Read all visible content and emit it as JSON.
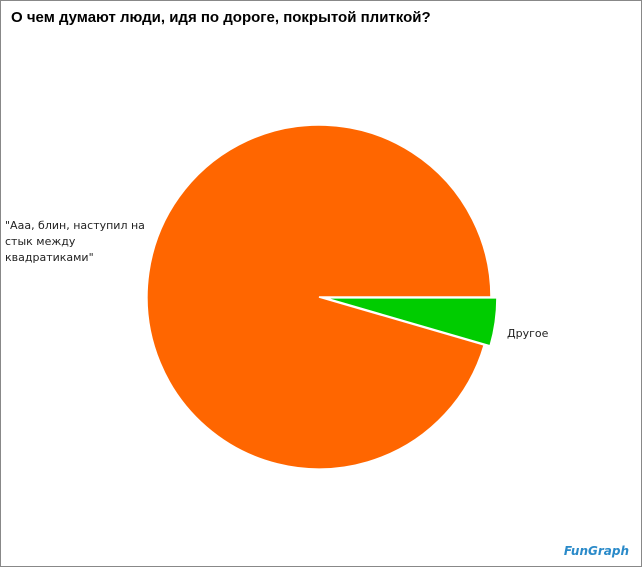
{
  "chart_data": {
    "type": "pie",
    "title": "О чем думают люди, идя по дороге, покрытой плиткой?",
    "categories": [
      "\"Ааа, блин, наступил на стык между квадратиками\"",
      "Другое"
    ],
    "values": [
      95.5,
      4.5
    ],
    "colors": [
      "#ff6600",
      "#00cc00"
    ],
    "watermark": "FunGraph"
  }
}
